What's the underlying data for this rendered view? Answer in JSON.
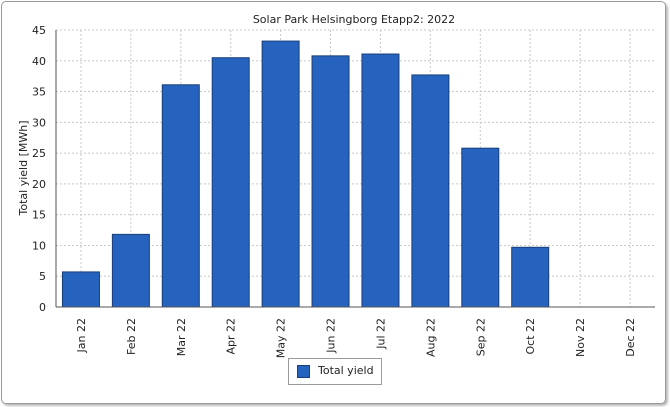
{
  "chart_data": {
    "type": "bar",
    "title": "Solar Park Helsingborg Etapp2: 2022",
    "xlabel": "",
    "ylabel": "Total yield [MWh]",
    "ylim": [
      0,
      45
    ],
    "yticks": [
      0,
      5,
      10,
      15,
      20,
      25,
      30,
      35,
      40,
      45
    ],
    "categories": [
      "Jan 22",
      "Feb 22",
      "Mar 22",
      "Apr 22",
      "May 22",
      "Jun 22",
      "Jul 22",
      "Aug 22",
      "Sep 22",
      "Oct 22",
      "Nov 22",
      "Dec 22"
    ],
    "series": [
      {
        "name": "Total yield",
        "values": [
          5.7,
          11.8,
          36.1,
          40.5,
          43.2,
          40.8,
          41.1,
          37.7,
          25.8,
          9.7,
          0,
          0
        ]
      }
    ],
    "grid": true,
    "legend_position": "bottom-center",
    "colors": {
      "bar": "#2563be",
      "bar_stroke": "#1a3f7a",
      "grid": "#c8c8c8",
      "axis": "#555555"
    }
  }
}
